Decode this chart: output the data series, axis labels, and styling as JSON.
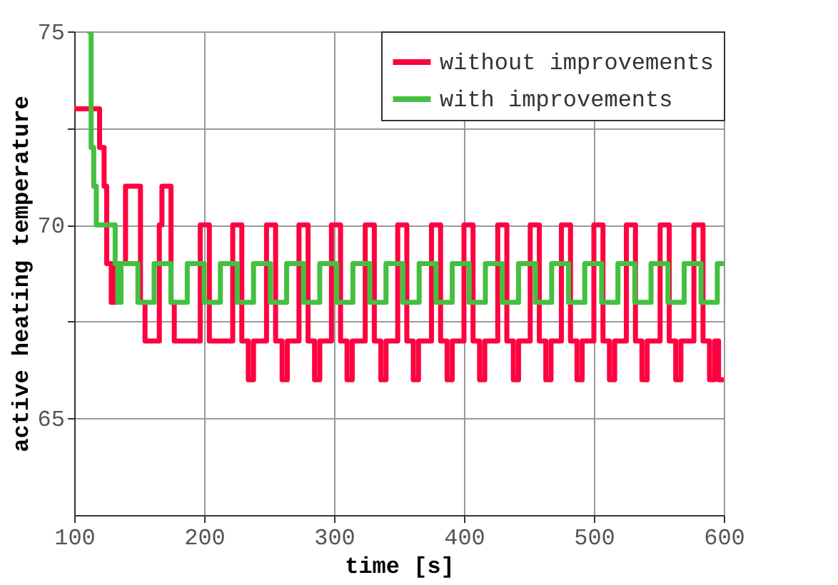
{
  "chart_data": {
    "type": "step",
    "xlabel": "time [s]",
    "ylabel": "active heating temperature",
    "xlim": [
      100,
      600
    ],
    "xticks": [
      100,
      200,
      300,
      400,
      500,
      600
    ],
    "ylim": [
      62.5,
      75
    ],
    "yticks": [
      65,
      {
        "value": 67.5,
        "label": null
      },
      70,
      {
        "value": 72.5,
        "label": null
      },
      75
    ],
    "grid": true,
    "legend": "top right",
    "line_style": "solid",
    "marker": "none",
    "series": [
      {
        "name": "without improvements",
        "color": "#ff0040",
        "x": [
          100,
          119.5,
          123,
          125,
          128.5,
          132,
          139.5,
          151,
          154.5,
          165.5,
          167.5,
          174.5,
          177,
          197,
          204,
          222,
          229,
          234,
          238,
          248,
          255,
          260,
          264,
          273,
          280,
          285,
          289,
          298,
          305,
          310,
          314,
          324,
          331,
          336,
          340,
          349,
          356,
          361,
          365,
          375,
          382,
          387,
          391,
          400,
          407,
          412,
          416,
          426,
          433,
          438,
          442,
          451,
          458,
          463,
          467,
          475,
          482,
          487,
          491,
          500,
          507,
          512,
          516,
          525,
          532,
          537,
          541,
          551,
          558,
          563,
          567,
          577,
          584,
          589,
          593,
          596,
          600
        ],
        "values": [
          73,
          72,
          71,
          69,
          68,
          69,
          71,
          68,
          67,
          70,
          71,
          68,
          67,
          70,
          67,
          70,
          67,
          66,
          67,
          70,
          67,
          66,
          67,
          70,
          67,
          66,
          67,
          70,
          67,
          66,
          67,
          70,
          67,
          66,
          67,
          70,
          67,
          66,
          67,
          70,
          67,
          66,
          67,
          70,
          67,
          66,
          67,
          70,
          67,
          66,
          67,
          70,
          67,
          66,
          67,
          70,
          67,
          66,
          67,
          70,
          67,
          66,
          67,
          70,
          67,
          66,
          67,
          70,
          67,
          66,
          67,
          70,
          67,
          66,
          67,
          66,
          66
        ]
      },
      {
        "name": "with improvements",
        "color": "#44c040",
        "x": [
          110,
          113,
          115,
          117,
          131.5,
          133.5,
          136,
          149,
          161.5,
          174.5,
          187,
          200,
          212.5,
          225.5,
          238,
          251,
          263.5,
          276.5,
          289,
          302,
          314.5,
          327.5,
          340,
          353,
          365.5,
          378.5,
          391,
          404,
          416.5,
          429.5,
          442,
          455,
          467.5,
          480.5,
          493,
          506,
          518.5,
          531.5,
          544,
          557,
          569.5,
          582.5,
          595,
          600
        ],
        "values": [
          75,
          72,
          71,
          70,
          69,
          68,
          69,
          68,
          69,
          68,
          69,
          68,
          69,
          68,
          69,
          68,
          69,
          68,
          69,
          68,
          69,
          68,
          69,
          68,
          69,
          68,
          69,
          68,
          69,
          68,
          69,
          68,
          69,
          68,
          69,
          68,
          69,
          68,
          69,
          68,
          69,
          68,
          69,
          69
        ]
      }
    ]
  }
}
